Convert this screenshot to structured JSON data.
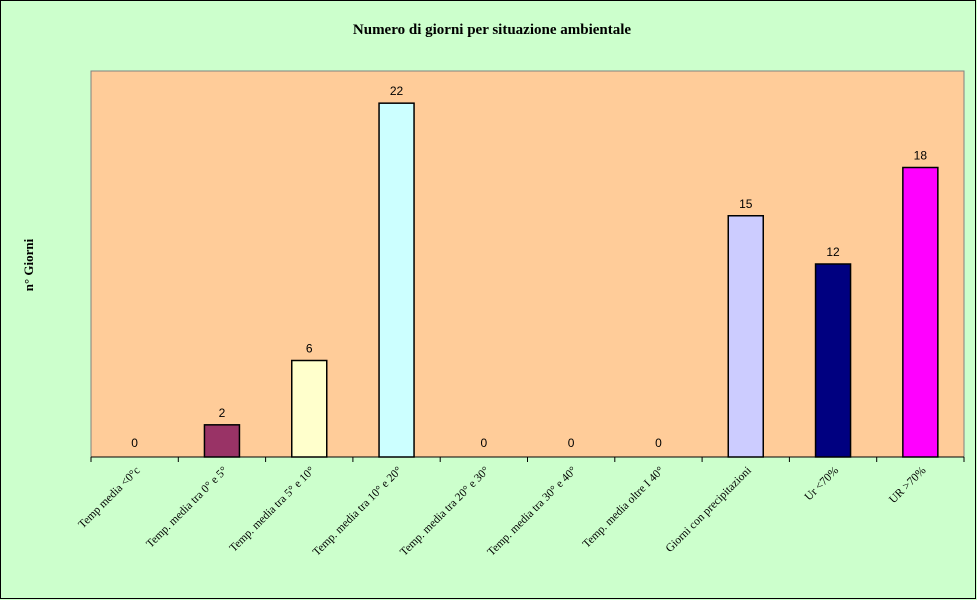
{
  "chart_data": {
    "type": "bar",
    "title": "Numero di giorni per situazione ambientale",
    "xlabel": "",
    "ylabel": "n° Giorni",
    "categories": [
      "Temp media <0°c",
      "Temp. media tra 0° e 5°",
      "Temp. media tra 5° e 10°",
      "Temp. media tra 10° e 20°",
      "Temp. media tra 20° e 30°",
      "Temp. media tra 30° e 40°",
      "Temp. media oltre I 40°",
      "Giorni con precipitazioni",
      "Ur <70%",
      "UR >70%"
    ],
    "values": [
      0,
      2,
      6,
      22,
      0,
      0,
      0,
      15,
      12,
      18
    ],
    "bar_colors": [
      "#993366",
      "#993366",
      "#ffffcc",
      "#ccffff",
      "#ccffff",
      "#ccffff",
      "#ccffff",
      "#ccccff",
      "#000080",
      "#ff00ff"
    ],
    "ylim": [
      0,
      24
    ],
    "grid": false,
    "legend": "none",
    "plot_background": "#ffcc99",
    "page_background": "#ccffcc"
  }
}
